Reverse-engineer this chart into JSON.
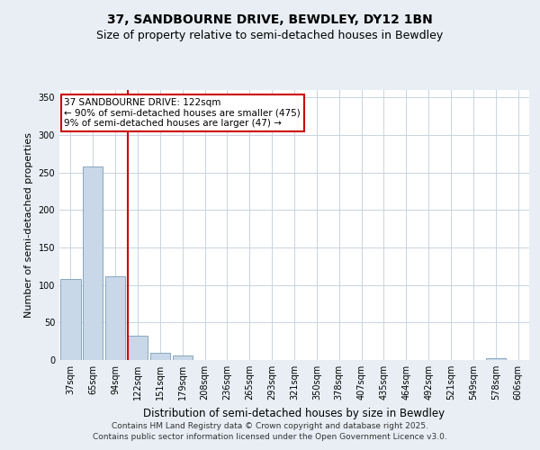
{
  "title_line1": "37, SANDBOURNE DRIVE, BEWDLEY, DY12 1BN",
  "title_line2": "Size of property relative to semi-detached houses in Bewdley",
  "xlabel": "Distribution of semi-detached houses by size in Bewdley",
  "ylabel": "Number of semi-detached properties",
  "categories": [
    "37sqm",
    "65sqm",
    "94sqm",
    "122sqm",
    "151sqm",
    "179sqm",
    "208sqm",
    "236sqm",
    "265sqm",
    "293sqm",
    "321sqm",
    "350sqm",
    "378sqm",
    "407sqm",
    "435sqm",
    "464sqm",
    "492sqm",
    "521sqm",
    "549sqm",
    "578sqm",
    "606sqm"
  ],
  "values": [
    108,
    258,
    112,
    33,
    10,
    6,
    0,
    0,
    0,
    0,
    0,
    0,
    0,
    0,
    0,
    0,
    0,
    0,
    0,
    3,
    0
  ],
  "bar_color": "#c8d8e8",
  "bar_edge_color": "#7a9cb8",
  "red_line_index": 3,
  "ylim": [
    0,
    360
  ],
  "yticks": [
    0,
    50,
    100,
    150,
    200,
    250,
    300,
    350
  ],
  "annotation_title": "37 SANDBOURNE DRIVE: 122sqm",
  "annotation_line2": "← 90% of semi-detached houses are smaller (475)",
  "annotation_line3": "9% of semi-detached houses are larger (47) →",
  "annotation_box_color": "#ffffff",
  "annotation_box_edge_color": "#cc0000",
  "footer_line1": "Contains HM Land Registry data © Crown copyright and database right 2025.",
  "footer_line2": "Contains public sector information licensed under the Open Government Licence v3.0.",
  "bg_color": "#e8eef4",
  "plot_bg_color": "#ffffff",
  "grid_color": "#c8d4e0",
  "title_fontsize": 10,
  "subtitle_fontsize": 9,
  "tick_fontsize": 7,
  "ylabel_fontsize": 8,
  "xlabel_fontsize": 8.5,
  "footer_fontsize": 6.5,
  "ann_fontsize": 7.5
}
